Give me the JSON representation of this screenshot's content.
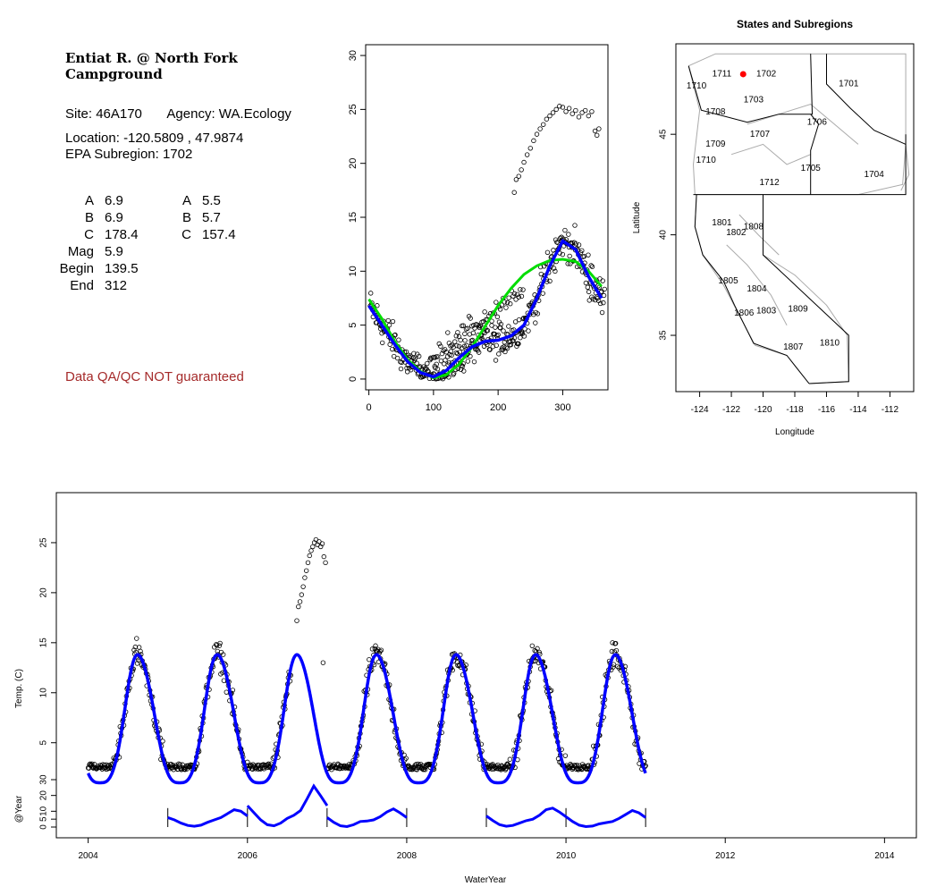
{
  "info": {
    "title": "Entiat R. @ North Fork Campground",
    "site_label": "Site:",
    "site": "46A170",
    "agency_label": "Agency:",
    "agency": "WA.Ecology",
    "location_label": "Location:",
    "location": "-120.5809 , 47.9874",
    "subregion_label": "EPA Subregion:",
    "subregion": "1702",
    "params_left": [
      {
        "k": "A",
        "v": "6.9"
      },
      {
        "k": "B",
        "v": "6.9"
      },
      {
        "k": "C",
        "v": "178.4"
      },
      {
        "k": "Mag",
        "v": "5.9"
      },
      {
        "k": "Begin",
        "v": "139.5"
      },
      {
        "k": "End",
        "v": "312"
      }
    ],
    "params_right": [
      {
        "k": "A",
        "v": "5.5"
      },
      {
        "k": "B",
        "v": "5.7"
      },
      {
        "k": "C",
        "v": "157.4"
      }
    ],
    "qa_note": "Data QA/QC NOT guaranteed"
  },
  "chart_data": [
    {
      "type": "scatter",
      "name": "annual-cycle",
      "xlim": [
        -5,
        370
      ],
      "ylim": [
        -1,
        31
      ],
      "x_ticks": [
        0,
        100,
        200,
        300
      ],
      "y_ticks": [
        0,
        5,
        10,
        15,
        20,
        25,
        30
      ],
      "point_color": "#000000",
      "blue_color": "#0000ff",
      "green_color": "#00dd00",
      "points_anomaly": [
        [
          225,
          17.3
        ],
        [
          228,
          18.5
        ],
        [
          232,
          18.8
        ],
        [
          236,
          19.4
        ],
        [
          240,
          20.1
        ],
        [
          245,
          20.8
        ],
        [
          250,
          21.4
        ],
        [
          255,
          22.1
        ],
        [
          260,
          22.7
        ],
        [
          265,
          23.2
        ],
        [
          270,
          23.6
        ],
        [
          275,
          24.1
        ],
        [
          280,
          24.4
        ],
        [
          285,
          24.7
        ],
        [
          290,
          25.0
        ],
        [
          295,
          25.3
        ],
        [
          300,
          25.2
        ],
        [
          305,
          24.8
        ],
        [
          310,
          25.1
        ],
        [
          315,
          24.6
        ],
        [
          320,
          24.9
        ],
        [
          325,
          24.3
        ],
        [
          330,
          24.7
        ],
        [
          335,
          24.9
        ],
        [
          340,
          24.4
        ],
        [
          345,
          24.8
        ],
        [
          350,
          23.0
        ],
        [
          353,
          22.6
        ],
        [
          356,
          23.2
        ]
      ],
      "blue_curve": [
        [
          0,
          6.8
        ],
        [
          20,
          5.0
        ],
        [
          40,
          3.2
        ],
        [
          60,
          1.6
        ],
        [
          80,
          0.6
        ],
        [
          100,
          0.2
        ],
        [
          120,
          0.8
        ],
        [
          140,
          2.0
        ],
        [
          160,
          3.0
        ],
        [
          180,
          3.5
        ],
        [
          200,
          3.6
        ],
        [
          220,
          4.0
        ],
        [
          240,
          5.0
        ],
        [
          260,
          7.5
        ],
        [
          280,
          10.5
        ],
        [
          300,
          12.8
        ],
        [
          320,
          12.0
        ],
        [
          340,
          9.5
        ],
        [
          360,
          7.5
        ]
      ],
      "green_curve": [
        [
          0,
          7.4
        ],
        [
          20,
          5.6
        ],
        [
          40,
          3.5
        ],
        [
          60,
          1.8
        ],
        [
          80,
          0.7
        ],
        [
          100,
          0.1
        ],
        [
          120,
          0.4
        ],
        [
          140,
          1.4
        ],
        [
          160,
          3.0
        ],
        [
          180,
          4.9
        ],
        [
          200,
          6.8
        ],
        [
          220,
          8.4
        ],
        [
          240,
          9.7
        ],
        [
          260,
          10.5
        ],
        [
          280,
          11.0
        ],
        [
          300,
          11.1
        ],
        [
          320,
          10.9
        ],
        [
          340,
          10.0
        ],
        [
          360,
          8.6
        ]
      ]
    },
    {
      "type": "map",
      "title": "States and Subregions",
      "xlabel": "Longitude",
      "ylabel": "Latitude",
      "xlim": [
        -125.5,
        -110.5
      ],
      "ylim": [
        32.2,
        49.5
      ],
      "x_ticks": [
        -124,
        -122,
        -120,
        -118,
        -116,
        -114,
        -112
      ],
      "y_ticks": [
        35,
        40,
        45
      ],
      "site": {
        "lon": -120.58,
        "lat": 47.99,
        "color": "#ff0000"
      },
      "regions": [
        {
          "label": "1711",
          "lon": -122.6,
          "lat": 48.0
        },
        {
          "label": "1702",
          "lon": -119.8,
          "lat": 48.0
        },
        {
          "label": "1710",
          "lon": -124.2,
          "lat": 47.4
        },
        {
          "label": "1701",
          "lon": -114.6,
          "lat": 47.5
        },
        {
          "label": "1703",
          "lon": -120.6,
          "lat": 46.7
        },
        {
          "label": "1708",
          "lon": -123.0,
          "lat": 46.1
        },
        {
          "label": "1706",
          "lon": -116.6,
          "lat": 45.6
        },
        {
          "label": "1707",
          "lon": -120.2,
          "lat": 45.0
        },
        {
          "label": "1709",
          "lon": -123.0,
          "lat": 44.5
        },
        {
          "label": "1710",
          "lon": -123.6,
          "lat": 43.7
        },
        {
          "label": "1705",
          "lon": -117.0,
          "lat": 43.3
        },
        {
          "label": "1704",
          "lon": -113.0,
          "lat": 43.0
        },
        {
          "label": "1712",
          "lon": -119.6,
          "lat": 42.6
        },
        {
          "label": "1801",
          "lon": -122.6,
          "lat": 40.6
        },
        {
          "label": "1808",
          "lon": -120.6,
          "lat": 40.4
        },
        {
          "label": "1802",
          "lon": -121.7,
          "lat": 40.1
        },
        {
          "label": "1805",
          "lon": -122.2,
          "lat": 37.7
        },
        {
          "label": "1804",
          "lon": -120.4,
          "lat": 37.3
        },
        {
          "label": "1806",
          "lon": -121.2,
          "lat": 36.1
        },
        {
          "label": "1803",
          "lon": -119.8,
          "lat": 36.2
        },
        {
          "label": "1809",
          "lon": -117.8,
          "lat": 36.3
        },
        {
          "label": "1810",
          "lon": -115.8,
          "lat": 34.6
        },
        {
          "label": "1807",
          "lon": -118.1,
          "lat": 34.4
        }
      ]
    },
    {
      "type": "scatter",
      "name": "time-series",
      "xlabel": "WaterYear",
      "ylabel": "Temp. (C)",
      "ylabel2": "@Year",
      "xlim": [
        2003.6,
        2014.4
      ],
      "ylim": [
        -4.5,
        30
      ],
      "x_ticks": [
        2004,
        2006,
        2008,
        2010,
        2012,
        2014
      ],
      "y_ticks": [
        5,
        10,
        15,
        20,
        25
      ],
      "y_ticks2": [
        0,
        5,
        10,
        20,
        30
      ],
      "data_start": 2004.0,
      "data_end": 2011.0,
      "anomaly_points": [
        [
          2006.62,
          17.2
        ],
        [
          2006.64,
          18.6
        ],
        [
          2006.66,
          19.1
        ],
        [
          2006.68,
          19.8
        ],
        [
          2006.7,
          20.6
        ],
        [
          2006.72,
          21.5
        ],
        [
          2006.74,
          22.2
        ],
        [
          2006.76,
          23.0
        ],
        [
          2006.78,
          23.7
        ],
        [
          2006.8,
          24.2
        ],
        [
          2006.82,
          24.6
        ],
        [
          2006.84,
          25.0
        ],
        [
          2006.86,
          25.3
        ],
        [
          2006.88,
          24.8
        ],
        [
          2006.9,
          25.1
        ],
        [
          2006.92,
          24.6
        ],
        [
          2006.94,
          24.9
        ],
        [
          2006.96,
          23.6
        ],
        [
          2006.98,
          23.0
        ]
      ],
      "outlier_points": [
        [
          2006.95,
          13.0
        ]
      ],
      "annual_years": [
        2005,
        2006,
        2007,
        2008,
        2009,
        2010,
        2011
      ],
      "annual_curves": [
        {
          "start": 2005.0,
          "end": 2006.0,
          "vals": [
            6.0,
            4.5,
            2.5,
            1.0,
            0.5,
            1.2,
            3.0,
            4.5,
            6.0,
            8.5,
            11.0,
            10.0,
            7.0
          ]
        },
        {
          "start": 2006.0,
          "end": 2007.0,
          "vals": [
            13.5,
            9.0,
            4.5,
            1.5,
            0.8,
            2.5,
            5.5,
            7.5,
            10.5,
            18.0,
            26.0,
            20.0,
            13.5
          ]
        },
        {
          "start": 2007.0,
          "end": 2008.0,
          "vals": [
            6.0,
            3.0,
            0.8,
            0.3,
            1.5,
            3.5,
            3.8,
            4.5,
            6.5,
            9.5,
            11.5,
            9.0,
            6.0
          ]
        },
        {
          "start": 2009.0,
          "end": 2010.0,
          "vals": [
            7.0,
            4.0,
            1.5,
            0.5,
            1.0,
            2.5,
            4.0,
            5.0,
            7.5,
            11.0,
            12.0,
            9.5,
            6.5
          ]
        },
        {
          "start": 2010.0,
          "end": 2011.0,
          "vals": [
            6.5,
            3.5,
            1.2,
            0.3,
            0.6,
            2.0,
            2.8,
            3.5,
            5.5,
            8.0,
            10.5,
            9.0,
            6.0
          ]
        }
      ]
    }
  ]
}
